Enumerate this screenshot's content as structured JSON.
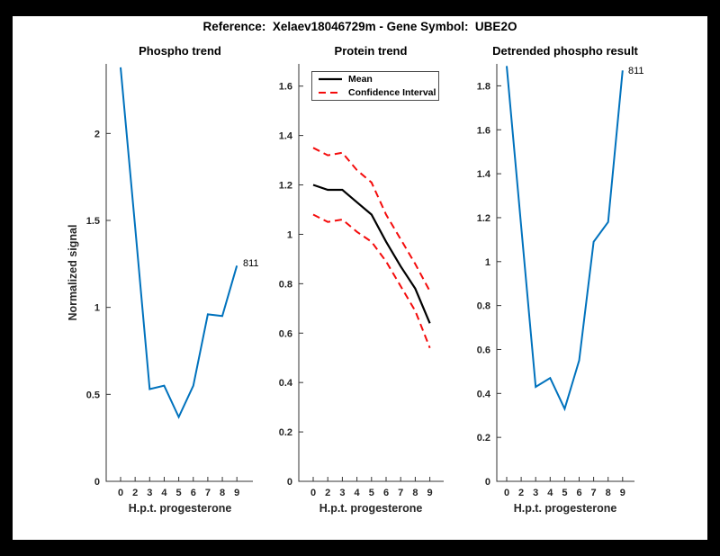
{
  "figure": {
    "title": "Reference:  Xelaev18046729m - Gene Symbol:  UBE2O",
    "frame_color": "#000000",
    "background_color": "#ffffff"
  },
  "colors": {
    "line_blue": "#0072BD",
    "ci_red": "#f40b0b",
    "mean_black": "#000000",
    "axis_text": "#262626",
    "spine": "#333333",
    "legend_border": "#4d4d4d"
  },
  "x_hours": [
    0,
    2,
    3,
    4,
    5,
    6,
    7,
    8,
    9
  ],
  "chart_data": [
    {
      "id": "phospho",
      "type": "line",
      "title": "Phospho trend",
      "xlabel": "H.p.t. progesterone",
      "ylabel": "Normalized signal",
      "x_tick_labels": [
        "0",
        "2",
        "3",
        "4",
        "5",
        "6",
        "7",
        "8",
        "9"
      ],
      "y_tick_values": [
        0,
        0.5,
        1,
        1.5,
        2
      ],
      "y_tick_labels": [
        "0",
        "0.5",
        "1",
        "1.5",
        "2"
      ],
      "ylim": [
        0,
        2.4
      ],
      "grid": false,
      "legend": null,
      "series": [
        {
          "name": "Phospho signal",
          "color_key": "line_blue",
          "style": "solid",
          "width": 2,
          "values": [
            2.38,
            1.46,
            0.53,
            0.55,
            0.37,
            0.55,
            0.96,
            0.95,
            1.24
          ]
        }
      ],
      "annotation": {
        "text": "811",
        "anchor": "last-point"
      }
    },
    {
      "id": "protein",
      "type": "line",
      "title": "Protein trend",
      "xlabel": "H.p.t. progesterone",
      "ylabel": "",
      "x_tick_labels": [
        "0",
        "2",
        "3",
        "4",
        "5",
        "6",
        "7",
        "8",
        "9"
      ],
      "y_tick_values": [
        0,
        0.2,
        0.4,
        0.6,
        0.8,
        1,
        1.2,
        1.4,
        1.6
      ],
      "y_tick_labels": [
        "0",
        "0.2",
        "0.4",
        "0.6",
        "0.8",
        "1",
        "1.2",
        "1.4",
        "1.6"
      ],
      "ylim": [
        0,
        1.69
      ],
      "grid": false,
      "legend": {
        "position": "top-left",
        "items": [
          {
            "label": "Mean",
            "style": "solid",
            "color_key": "mean_black"
          },
          {
            "label": "Confidence Interval",
            "style": "dashed",
            "color_key": "ci_red"
          }
        ]
      },
      "series": [
        {
          "name": "Mean",
          "color_key": "mean_black",
          "style": "solid",
          "width": 2.2,
          "values": [
            1.2,
            1.18,
            1.18,
            1.13,
            1.08,
            0.97,
            0.87,
            0.78,
            0.64
          ]
        },
        {
          "name": "Confidence Interval upper",
          "color_key": "ci_red",
          "style": "dashed",
          "width": 2,
          "values": [
            1.35,
            1.32,
            1.33,
            1.26,
            1.21,
            1.08,
            0.98,
            0.88,
            0.77
          ]
        },
        {
          "name": "Confidence Interval lower",
          "color_key": "ci_red",
          "style": "dashed",
          "width": 2,
          "values": [
            1.08,
            1.05,
            1.06,
            1.01,
            0.97,
            0.89,
            0.79,
            0.69,
            0.54
          ]
        }
      ],
      "annotation": null
    },
    {
      "id": "detrended",
      "type": "line",
      "title": "Detrended phospho result",
      "xlabel": "H.p.t. progesterone",
      "ylabel": "",
      "x_tick_labels": [
        "0",
        "2",
        "3",
        "4",
        "5",
        "6",
        "7",
        "8",
        "9"
      ],
      "y_tick_values": [
        0,
        0.2,
        0.4,
        0.6,
        0.8,
        1,
        1.2,
        1.4,
        1.6,
        1.8
      ],
      "y_tick_labels": [
        "0",
        "0.2",
        "0.4",
        "0.6",
        "0.8",
        "1",
        "1.2",
        "1.4",
        "1.6",
        "1.8"
      ],
      "ylim": [
        0,
        1.9
      ],
      "grid": false,
      "legend": null,
      "series": [
        {
          "name": "Detrended phospho signal",
          "color_key": "line_blue",
          "style": "solid",
          "width": 2,
          "values": [
            1.89,
            1.16,
            0.43,
            0.47,
            0.33,
            0.55,
            1.09,
            1.18,
            1.87
          ]
        }
      ],
      "annotation": {
        "text": "811",
        "anchor": "last-point"
      }
    }
  ]
}
